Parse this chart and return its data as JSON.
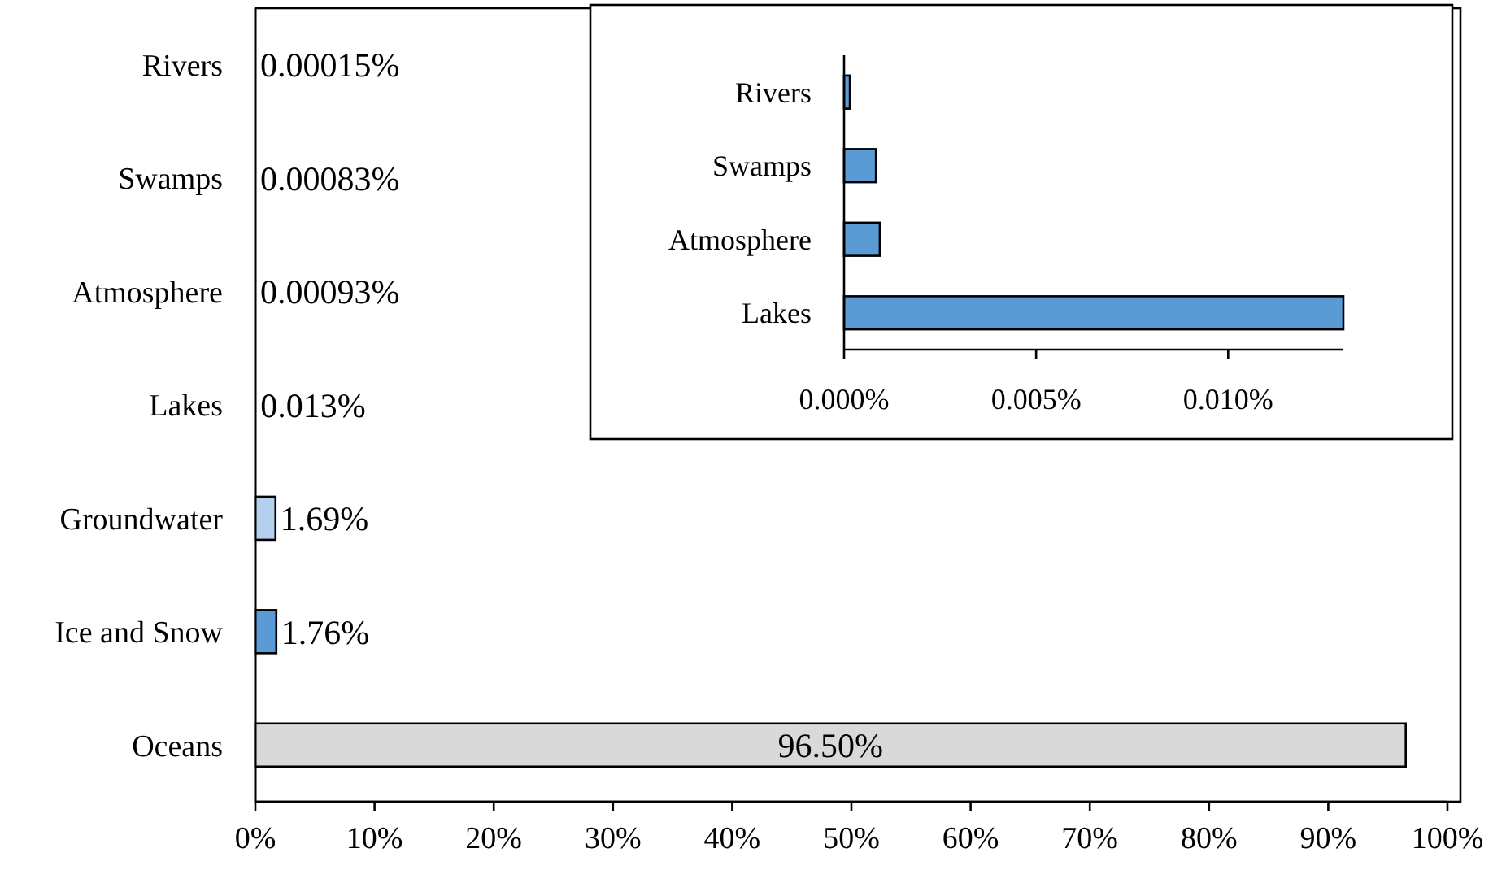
{
  "chart_data": [
    {
      "type": "bar",
      "orientation": "horizontal",
      "categories": [
        "Rivers",
        "Swamps",
        "Atmosphere",
        "Lakes",
        "Groundwater",
        "Ice and Snow",
        "Oceans"
      ],
      "values": [
        0.00015,
        0.00083,
        0.00093,
        0.013,
        1.69,
        1.76,
        96.5
      ],
      "colors": [
        "#5b9bd5",
        "#5b9bd5",
        "#5b9bd5",
        "#5b9bd5",
        "#b4d0ee",
        "#5b9bd5",
        "#d9d9d9"
      ],
      "value_labels": [
        "0.00015%",
        "0.00083%",
        "0.00093%",
        "0.013%",
        "1.69%",
        "1.76%",
        "96.50%"
      ],
      "xlim": [
        0,
        100
      ],
      "xticks": [
        {
          "value": 0,
          "label": "0%"
        },
        {
          "value": 10,
          "label": "10%"
        },
        {
          "value": 20,
          "label": "20%"
        },
        {
          "value": 30,
          "label": "30%"
        },
        {
          "value": 40,
          "label": "40%"
        },
        {
          "value": 50,
          "label": "50%"
        },
        {
          "value": 60,
          "label": "60%"
        },
        {
          "value": 70,
          "label": "70%"
        },
        {
          "value": 80,
          "label": "80%"
        },
        {
          "value": 90,
          "label": "90%"
        },
        {
          "value": 100,
          "label": "100%"
        }
      ]
    },
    {
      "type": "bar",
      "orientation": "horizontal",
      "categories": [
        "Rivers",
        "Swamps",
        "Atmosphere",
        "Lakes"
      ],
      "values": [
        0.00015,
        0.00083,
        0.00093,
        0.013
      ],
      "color": "#5b9bd5",
      "xlim": [
        0,
        0.013
      ],
      "xticks": [
        {
          "value": 0,
          "label": "0.000%"
        },
        {
          "value": 0.005,
          "label": "0.005%"
        },
        {
          "value": 0.01,
          "label": "0.010%"
        }
      ]
    }
  ]
}
